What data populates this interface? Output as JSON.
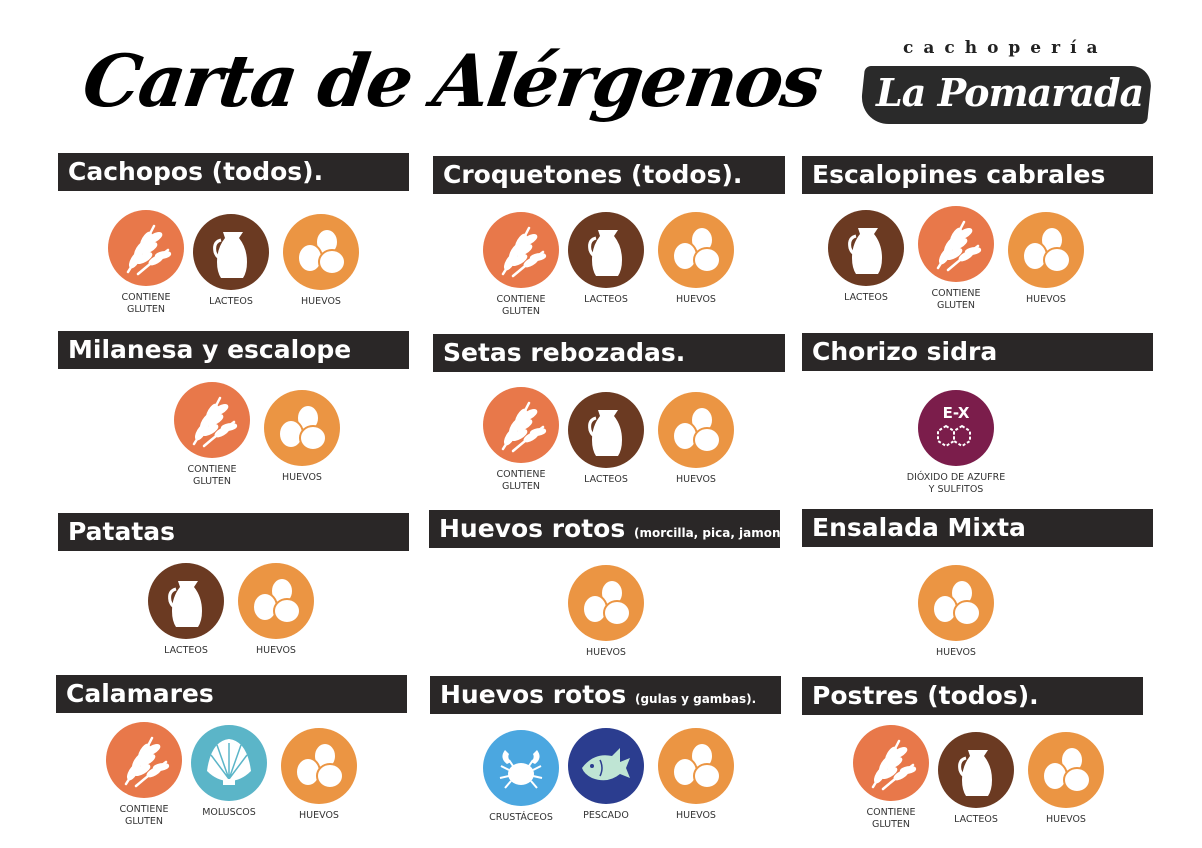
{
  "title": "Carta de Alérgenos",
  "logo": {
    "top": "cachopería",
    "name": "La Pomarada"
  },
  "allergens": {
    "gluten": {
      "label": "CONTIENE\nGLUTEN",
      "color": "#E8784A",
      "icon": "wheat-icon"
    },
    "lacteos": {
      "label": "LACTEOS",
      "color": "#6B3A22",
      "icon": "jug-icon"
    },
    "huevos": {
      "label": "HUEVOS",
      "color": "#EB9543",
      "icon": "eggs-icon"
    },
    "sulfitos": {
      "label": "DIÓXIDO DE AZUFRE\nY SULFITOS",
      "color": "#7B1D4B",
      "icon": "sulfite-molecule-icon",
      "badge": "E-X"
    },
    "moluscos": {
      "label": "MOLUSCOS",
      "color": "#5BB5C8",
      "icon": "shell-icon"
    },
    "crustaceos": {
      "label": "CRUSTÁCEOS",
      "color": "#4BA7E0",
      "icon": "crab-icon"
    },
    "pescado": {
      "label": "PESCADO",
      "color": "#2B3D8F",
      "icon": "fish-icon"
    }
  },
  "sections": [
    {
      "name": "Cachopos (todos).",
      "note": "",
      "allergens": [
        "gluten",
        "lacteos",
        "huevos"
      ]
    },
    {
      "name": "Croquetones (todos).",
      "note": "",
      "allergens": [
        "gluten",
        "lacteos",
        "huevos"
      ]
    },
    {
      "name": "Escalopines cabrales",
      "note": "",
      "allergens": [
        "lacteos",
        "gluten",
        "huevos"
      ]
    },
    {
      "name": "Milanesa y escalope",
      "note": "",
      "allergens": [
        "gluten",
        "huevos"
      ]
    },
    {
      "name": "Setas rebozadas.",
      "note": "",
      "allergens": [
        "gluten",
        "lacteos",
        "huevos"
      ]
    },
    {
      "name": "Chorizo sidra",
      "note": "",
      "allergens": [
        "sulfitos"
      ]
    },
    {
      "name": "Patatas",
      "note": "",
      "allergens": [
        "lacteos",
        "huevos"
      ]
    },
    {
      "name": "Huevos rotos",
      "note": "(morcilla, pica, jamon)",
      "allergens": [
        "huevos"
      ]
    },
    {
      "name": "Ensalada Mixta",
      "note": "",
      "allergens": [
        "huevos"
      ]
    },
    {
      "name": "Calamares",
      "note": "",
      "allergens": [
        "gluten",
        "moluscos",
        "huevos"
      ]
    },
    {
      "name": "Huevos rotos",
      "note": "(gulas y gambas).",
      "allergens": [
        "crustaceos",
        "pescado",
        "huevos"
      ]
    },
    {
      "name": "Postres (todos).",
      "note": "",
      "allergens": [
        "gluten",
        "lacteos",
        "huevos"
      ]
    }
  ]
}
